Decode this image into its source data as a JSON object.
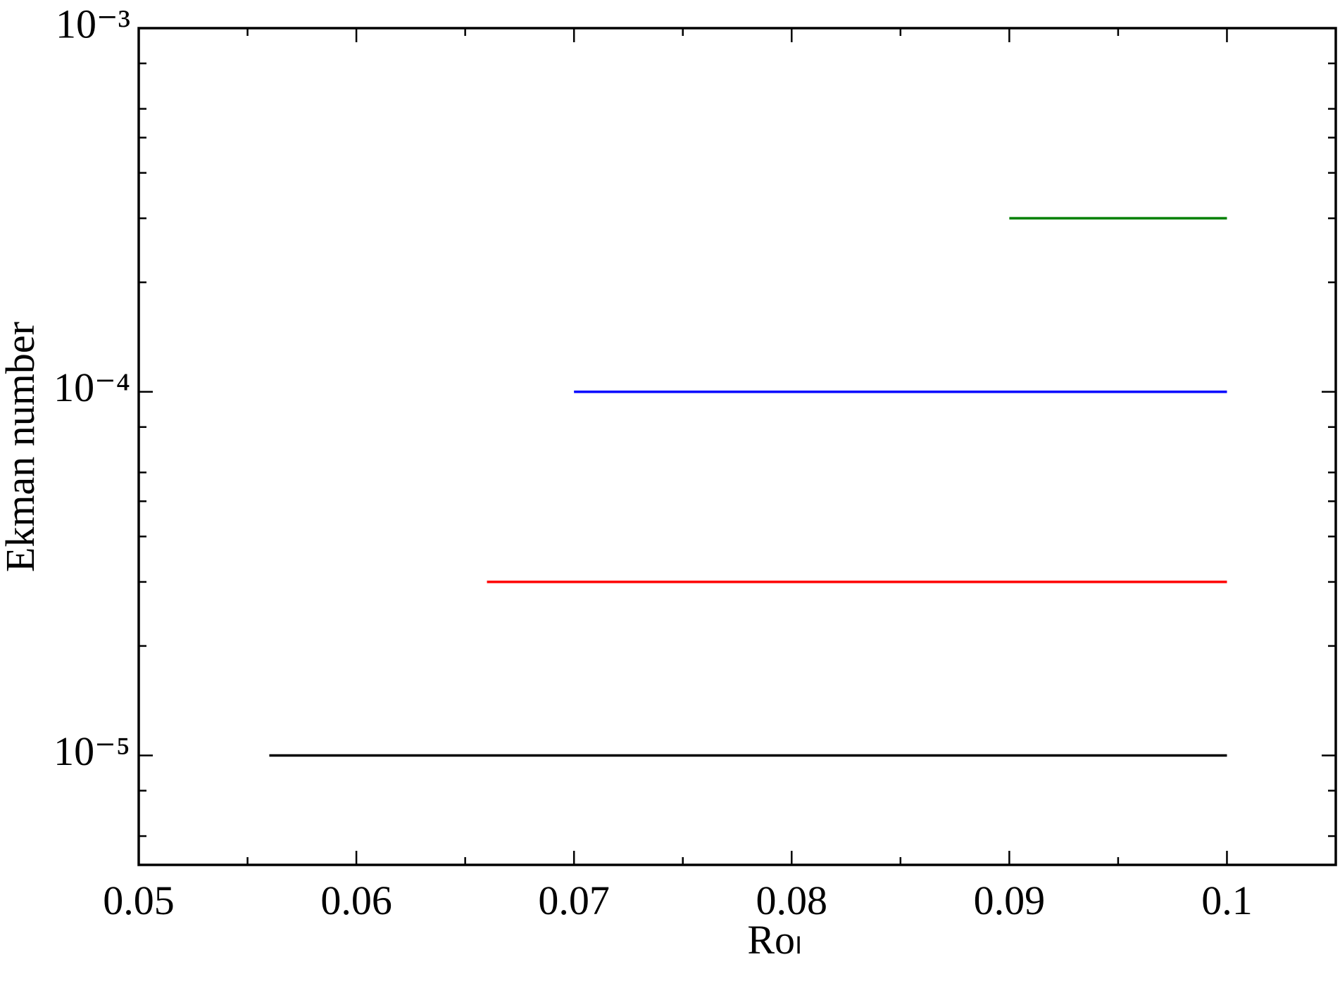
{
  "chart_data": {
    "type": "line",
    "x_label": "Roₗ",
    "y_label": "Ekman number",
    "xlim": [
      0.05,
      0.105
    ],
    "ylim": [
      5e-06,
      0.001
    ],
    "yscale": "log",
    "xticks": [
      0.05,
      0.06,
      0.07,
      0.08,
      0.09,
      {
        "value": 0.1,
        "label": "0.1"
      }
    ],
    "xminorticks": [
      0.055,
      0.065,
      0.075,
      0.085,
      0.095,
      0.105
    ],
    "yticks": [
      {
        "value": 1e-05,
        "label": "10⁻⁵"
      },
      {
        "value": 0.0001,
        "label": "10⁻⁴"
      },
      {
        "value": 0.001,
        "label": "10⁻³"
      }
    ],
    "yminorticks": [
      6e-06,
      8e-06,
      2e-05,
      3e-05,
      4e-05,
      5e-05,
      6e-05,
      8e-05,
      0.0002,
      0.0003,
      0.0004,
      0.0005,
      0.0006,
      0.0008
    ],
    "series": [
      {
        "color": "#000000",
        "x": [
          0.056,
          0.1
        ],
        "values": [
          1e-05,
          1e-05
        ]
      },
      {
        "color": "#ff0000",
        "x": [
          0.066,
          0.1
        ],
        "values": [
          3e-05,
          3e-05
        ]
      },
      {
        "color": "#0000ff",
        "x": [
          0.07,
          0.1
        ],
        "values": [
          0.0001,
          0.0001
        ]
      },
      {
        "color": "#008000",
        "x": [
          0.09,
          0.1
        ],
        "values": [
          0.0003,
          0.0003
        ]
      }
    ]
  }
}
